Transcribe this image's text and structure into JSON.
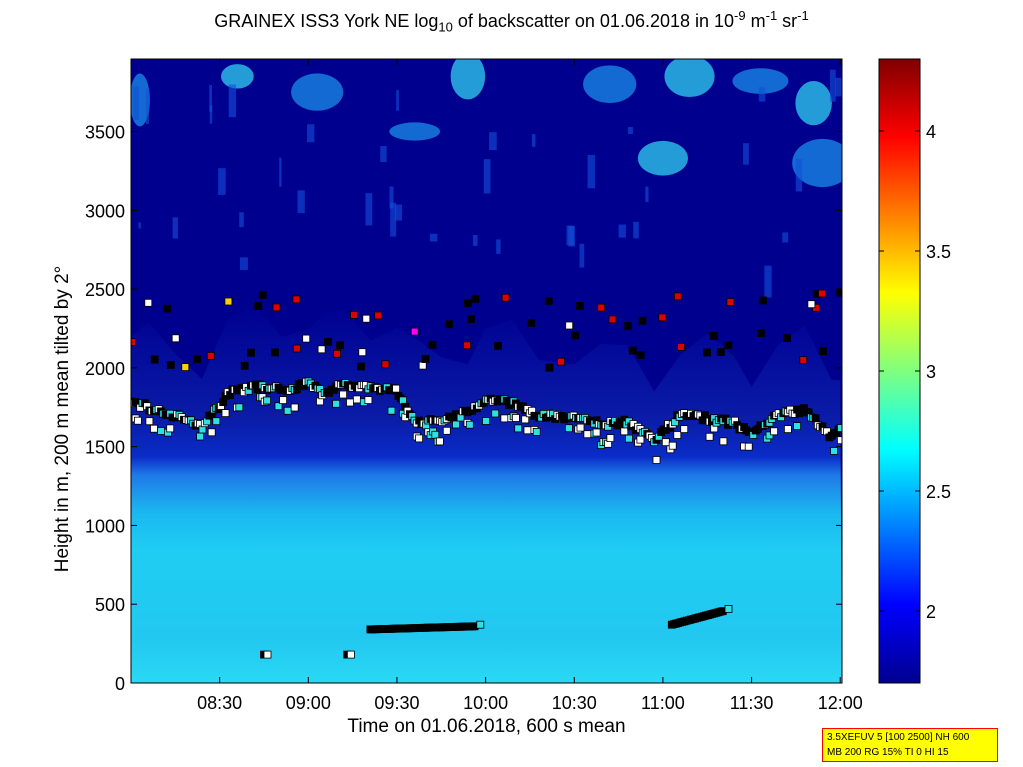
{
  "chart_data": {
    "type": "heatmap",
    "title": {
      "prefix": "GRAINEX ISS3 York NE log",
      "sub": "10",
      "middle": " of backscatter on 01.06.2018 in 10",
      "sup1": "-9",
      "unit_m": " m",
      "sup2": "-1",
      "unit_sr": " sr",
      "sup3": "-1"
    },
    "xlabel": "Time on 01.06.2018, 600 s mean",
    "ylabel": "Height in m, 200 m mean tilted by 2°",
    "x_ticks": [
      "08:30",
      "09:00",
      "09:30",
      "10:00",
      "10:30",
      "11:00",
      "11:30",
      "12:00"
    ],
    "x_tick_values_hours": [
      8.5,
      9.0,
      9.5,
      10.0,
      10.5,
      11.0,
      11.5,
      12.0
    ],
    "xlim_hours": [
      8.0,
      12.01
    ],
    "y_ticks": [
      "0",
      "500",
      "1000",
      "1500",
      "2000",
      "2500",
      "3000",
      "3500"
    ],
    "y_tick_values": [
      0,
      500,
      1000,
      1500,
      2000,
      2500,
      3000,
      3500
    ],
    "ylim": [
      0,
      3960
    ],
    "colorbar": {
      "range": [
        1.7,
        4.3
      ],
      "tick_values": [
        2,
        2.5,
        3,
        3.5,
        4
      ],
      "tick_labels": [
        "2",
        "2.5",
        "3",
        "3.5",
        "4"
      ],
      "colormap": "jet"
    },
    "boundary_layer_top": {
      "name": "",
      "x_hours": [
        8.0,
        8.1,
        8.25,
        8.4,
        8.55,
        8.7,
        8.85,
        9.0,
        9.1,
        9.2,
        9.35,
        9.5,
        9.6,
        9.75,
        9.9,
        10.0,
        10.15,
        10.3,
        10.5,
        10.65,
        10.8,
        10.95,
        11.1,
        11.25,
        11.4,
        11.5,
        11.65,
        11.8,
        11.95,
        12.0
      ],
      "heights": [
        1780,
        1750,
        1700,
        1620,
        1840,
        1880,
        1860,
        1900,
        1830,
        1900,
        1870,
        1850,
        1650,
        1660,
        1720,
        1790,
        1780,
        1700,
        1690,
        1640,
        1660,
        1540,
        1700,
        1680,
        1650,
        1580,
        1700,
        1740,
        1560,
        1600
      ]
    },
    "upper_markers_heights_range": [
      2000,
      2480
    ],
    "low_layer_segments": [
      {
        "x_hours": [
          9.35,
          9.95
        ],
        "heights": [
          340,
          360
        ]
      },
      {
        "x_hours": [
          11.05,
          11.35
        ],
        "heights": [
          370,
          460
        ]
      }
    ],
    "near_surface_markers": [
      {
        "x_hours": 8.75,
        "height": 180
      },
      {
        "x_hours": 9.22,
        "height": 180
      }
    ]
  },
  "info_box": {
    "line1": "3.5XEFUV 5 [100 2500] NH 600",
    "line2": "MB 200 RG 15% TI 0 HI 15"
  },
  "colors": {
    "marker_black": "#000000",
    "marker_red": "#dd0000",
    "marker_white": "#ffffff",
    "marker_cyan": "#30e0e0",
    "marker_magenta": "#ff00ff",
    "marker_yellow": "#ffd000",
    "info_box_bg": "#ffff00",
    "info_box_border": "#ff0000"
  }
}
